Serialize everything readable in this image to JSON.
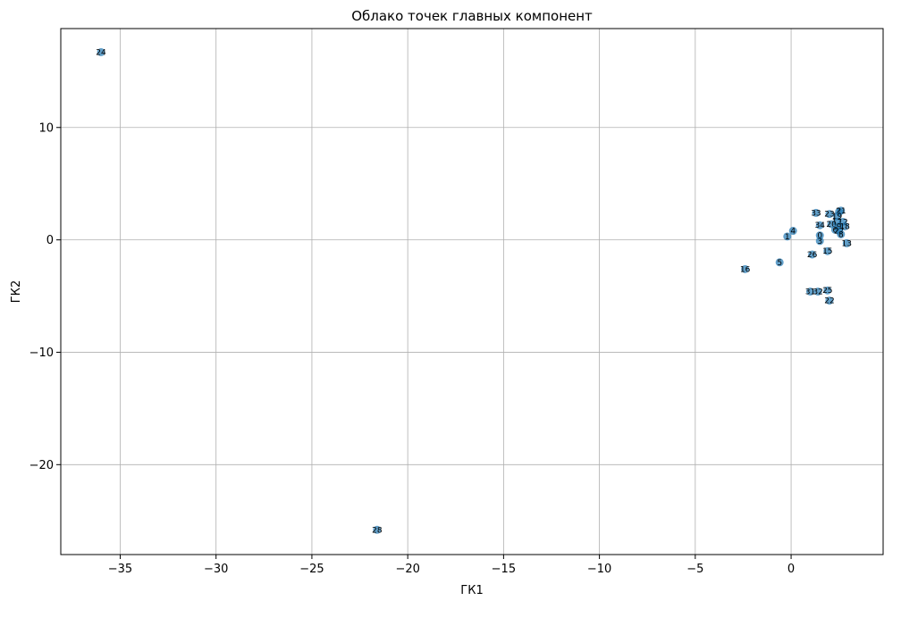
{
  "chart_data": {
    "type": "scatter",
    "title": "Облако точек главных компонент",
    "xlabel": "ГК1",
    "ylabel": "ГК2",
    "xlim": [
      -38.1,
      4.8
    ],
    "ylim": [
      -28.0,
      18.8
    ],
    "xticks": [
      -35,
      -30,
      -25,
      -20,
      -15,
      -10,
      -5,
      0
    ],
    "xtick_labels": [
      "−35",
      "−30",
      "−25",
      "−20",
      "−15",
      "−10",
      "−5",
      "0"
    ],
    "yticks": [
      -20,
      -10,
      0,
      10
    ],
    "ytick_labels": [
      "−20",
      "−10",
      "0",
      "10"
    ],
    "grid": true,
    "color": "#1f77b4",
    "points": [
      {
        "label": "24",
        "x": -36.0,
        "y": 16.7
      },
      {
        "label": "28",
        "x": -21.6,
        "y": -25.8
      },
      {
        "label": "16",
        "x": -2.4,
        "y": -2.6
      },
      {
        "label": "5",
        "x": -0.6,
        "y": -2.0
      },
      {
        "label": "1",
        "x": -0.2,
        "y": 0.3
      },
      {
        "label": "4",
        "x": 0.1,
        "y": 0.8
      },
      {
        "label": "0",
        "x": 1.5,
        "y": 0.4
      },
      {
        "label": "3",
        "x": 1.5,
        "y": -0.1
      },
      {
        "label": "26",
        "x": 1.1,
        "y": -1.3
      },
      {
        "label": "15",
        "x": 1.9,
        "y": -1.0
      },
      {
        "label": "13",
        "x": 2.9,
        "y": -0.3
      },
      {
        "label": "34",
        "x": 1.5,
        "y": 1.3
      },
      {
        "label": "33",
        "x": 1.3,
        "y": 2.4
      },
      {
        "label": "23",
        "x": 2.0,
        "y": 2.3
      },
      {
        "label": "7",
        "x": 2.5,
        "y": 2.5
      },
      {
        "label": "21",
        "x": 2.6,
        "y": 2.6
      },
      {
        "label": "19",
        "x": 2.4,
        "y": 2.1
      },
      {
        "label": "17",
        "x": 2.4,
        "y": 1.6
      },
      {
        "label": "12",
        "x": 2.7,
        "y": 1.6
      },
      {
        "label": "20",
        "x": 2.1,
        "y": 1.4
      },
      {
        "label": "9",
        "x": 2.5,
        "y": 1.2
      },
      {
        "label": "18",
        "x": 2.8,
        "y": 1.2
      },
      {
        "label": "6",
        "x": 2.3,
        "y": 0.9
      },
      {
        "label": "27",
        "x": 2.5,
        "y": 0.8
      },
      {
        "label": "8",
        "x": 2.6,
        "y": 0.5
      },
      {
        "label": "31",
        "x": 1.0,
        "y": -4.6
      },
      {
        "label": "32",
        "x": 1.4,
        "y": -4.6
      },
      {
        "label": "25",
        "x": 1.9,
        "y": -4.5
      },
      {
        "label": "22",
        "x": 2.0,
        "y": -5.4
      }
    ]
  }
}
